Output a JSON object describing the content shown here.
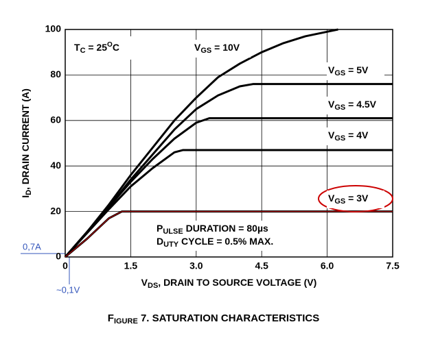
{
  "chart_data": {
    "type": "line",
    "caption": "FIGURE 7.  SATURATION CHARACTERISTICS",
    "x_label": "VDS, DRAIN TO SOURCE VOLTAGE (V)",
    "y_label": "ID, DRAIN CURRENT (A)",
    "xlim": [
      0,
      7.5
    ],
    "ylim": [
      0,
      100
    ],
    "xticks": [
      0,
      1.5,
      {
        "value": 3,
        "label": "3.0"
      },
      4.5,
      {
        "value": 6,
        "label": "6.0"
      },
      7.5
    ],
    "yticks": [
      0,
      20,
      40,
      60,
      80,
      100
    ],
    "grid": true,
    "highlight_color": "#cc0000",
    "annotations": [
      "TC = 25OC",
      "PULSE DURATION = 80µs",
      "DUTY CYCLE = 0.5% MAX.",
      "0,7A",
      "~0,1V"
    ],
    "series": [
      {
        "name": "VGS = 10V",
        "color": "#000000",
        "x": [
          0,
          0.5,
          1,
          1.5,
          2,
          2.5,
          3,
          3.5,
          4,
          4.5,
          5,
          5.5,
          6,
          6.25
        ],
        "values": [
          0,
          11,
          23,
          36,
          48,
          60,
          70,
          79,
          85,
          90,
          94,
          97,
          99,
          100
        ]
      },
      {
        "name": "VGS = 5V",
        "color": "#000000",
        "x": [
          0,
          1,
          1.5,
          2,
          2.5,
          3,
          3.5,
          4,
          4.3,
          7.5
        ],
        "values": [
          0,
          22,
          34,
          45,
          56,
          65,
          71,
          75,
          76,
          76
        ]
      },
      {
        "name": "VGS = 4.5V",
        "color": "#000000",
        "x": [
          0,
          1,
          1.5,
          2,
          2.5,
          3,
          3.3,
          7.5
        ],
        "values": [
          0,
          22,
          33,
          43,
          52,
          59,
          61,
          61
        ]
      },
      {
        "name": "VGS = 4V",
        "color": "#000000",
        "x": [
          0,
          1,
          1.5,
          2,
          2.5,
          2.7,
          7.5
        ],
        "values": [
          0,
          21,
          31,
          39,
          46,
          47,
          47
        ]
      },
      {
        "name": "VGS = 3V",
        "color": "#000000",
        "x": [
          0,
          0.5,
          1,
          1.3,
          7.5
        ],
        "values": [
          0,
          8,
          17,
          20,
          20
        ]
      }
    ]
  }
}
